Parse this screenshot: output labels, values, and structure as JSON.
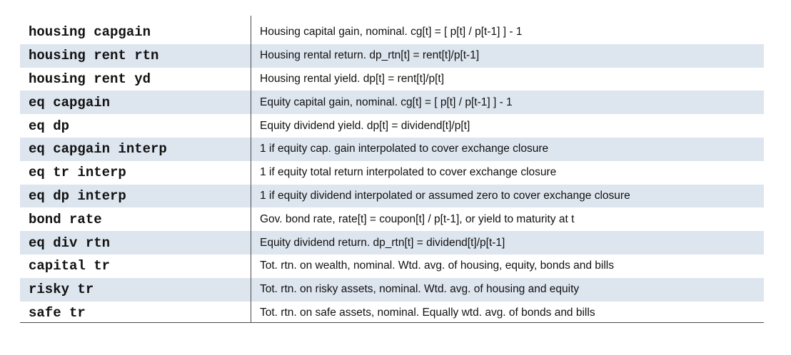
{
  "rows": [
    {
      "var": "housing capgain",
      "desc": "Housing capital gain, nominal. cg[t] = [ p[t] / p[t-1] ] - 1"
    },
    {
      "var": "housing rent rtn",
      "desc": "Housing rental return. dp_rtn[t] = rent[t]/p[t-1]"
    },
    {
      "var": "housing rent yd",
      "desc": "Housing rental yield. dp[t] = rent[t]/p[t]"
    },
    {
      "var": "eq capgain",
      "desc": "Equity capital gain, nominal. cg[t] = [ p[t] / p[t-1] ] - 1"
    },
    {
      "var": "eq dp",
      "desc": "Equity dividend yield. dp[t] = dividend[t]/p[t]"
    },
    {
      "var": "eq capgain interp",
      "desc": "1 if equity cap. gain interpolated to cover exchange closure"
    },
    {
      "var": "eq tr interp",
      "desc": "1 if equity total return interpolated to cover exchange closure"
    },
    {
      "var": "eq dp interp",
      "desc": "1 if equity dividend interpolated or assumed zero to cover exchange closure"
    },
    {
      "var": "bond rate",
      "desc": "Gov. bond rate, rate[t] = coupon[t] / p[t-1], or yield to maturity at t"
    },
    {
      "var": "eq div rtn",
      "desc": "Equity dividend return. dp_rtn[t] = dividend[t]/p[t-1]"
    },
    {
      "var": "capital tr",
      "desc": "Tot. rtn. on wealth, nominal. Wtd. avg. of housing, equity, bonds and bills"
    },
    {
      "var": "risky tr",
      "desc": "Tot. rtn. on risky assets, nominal. Wtd. avg. of housing and equity"
    },
    {
      "var": "safe tr",
      "desc": "Tot. rtn. on safe assets, nominal. Equally wtd. avg. of bonds and bills"
    }
  ]
}
